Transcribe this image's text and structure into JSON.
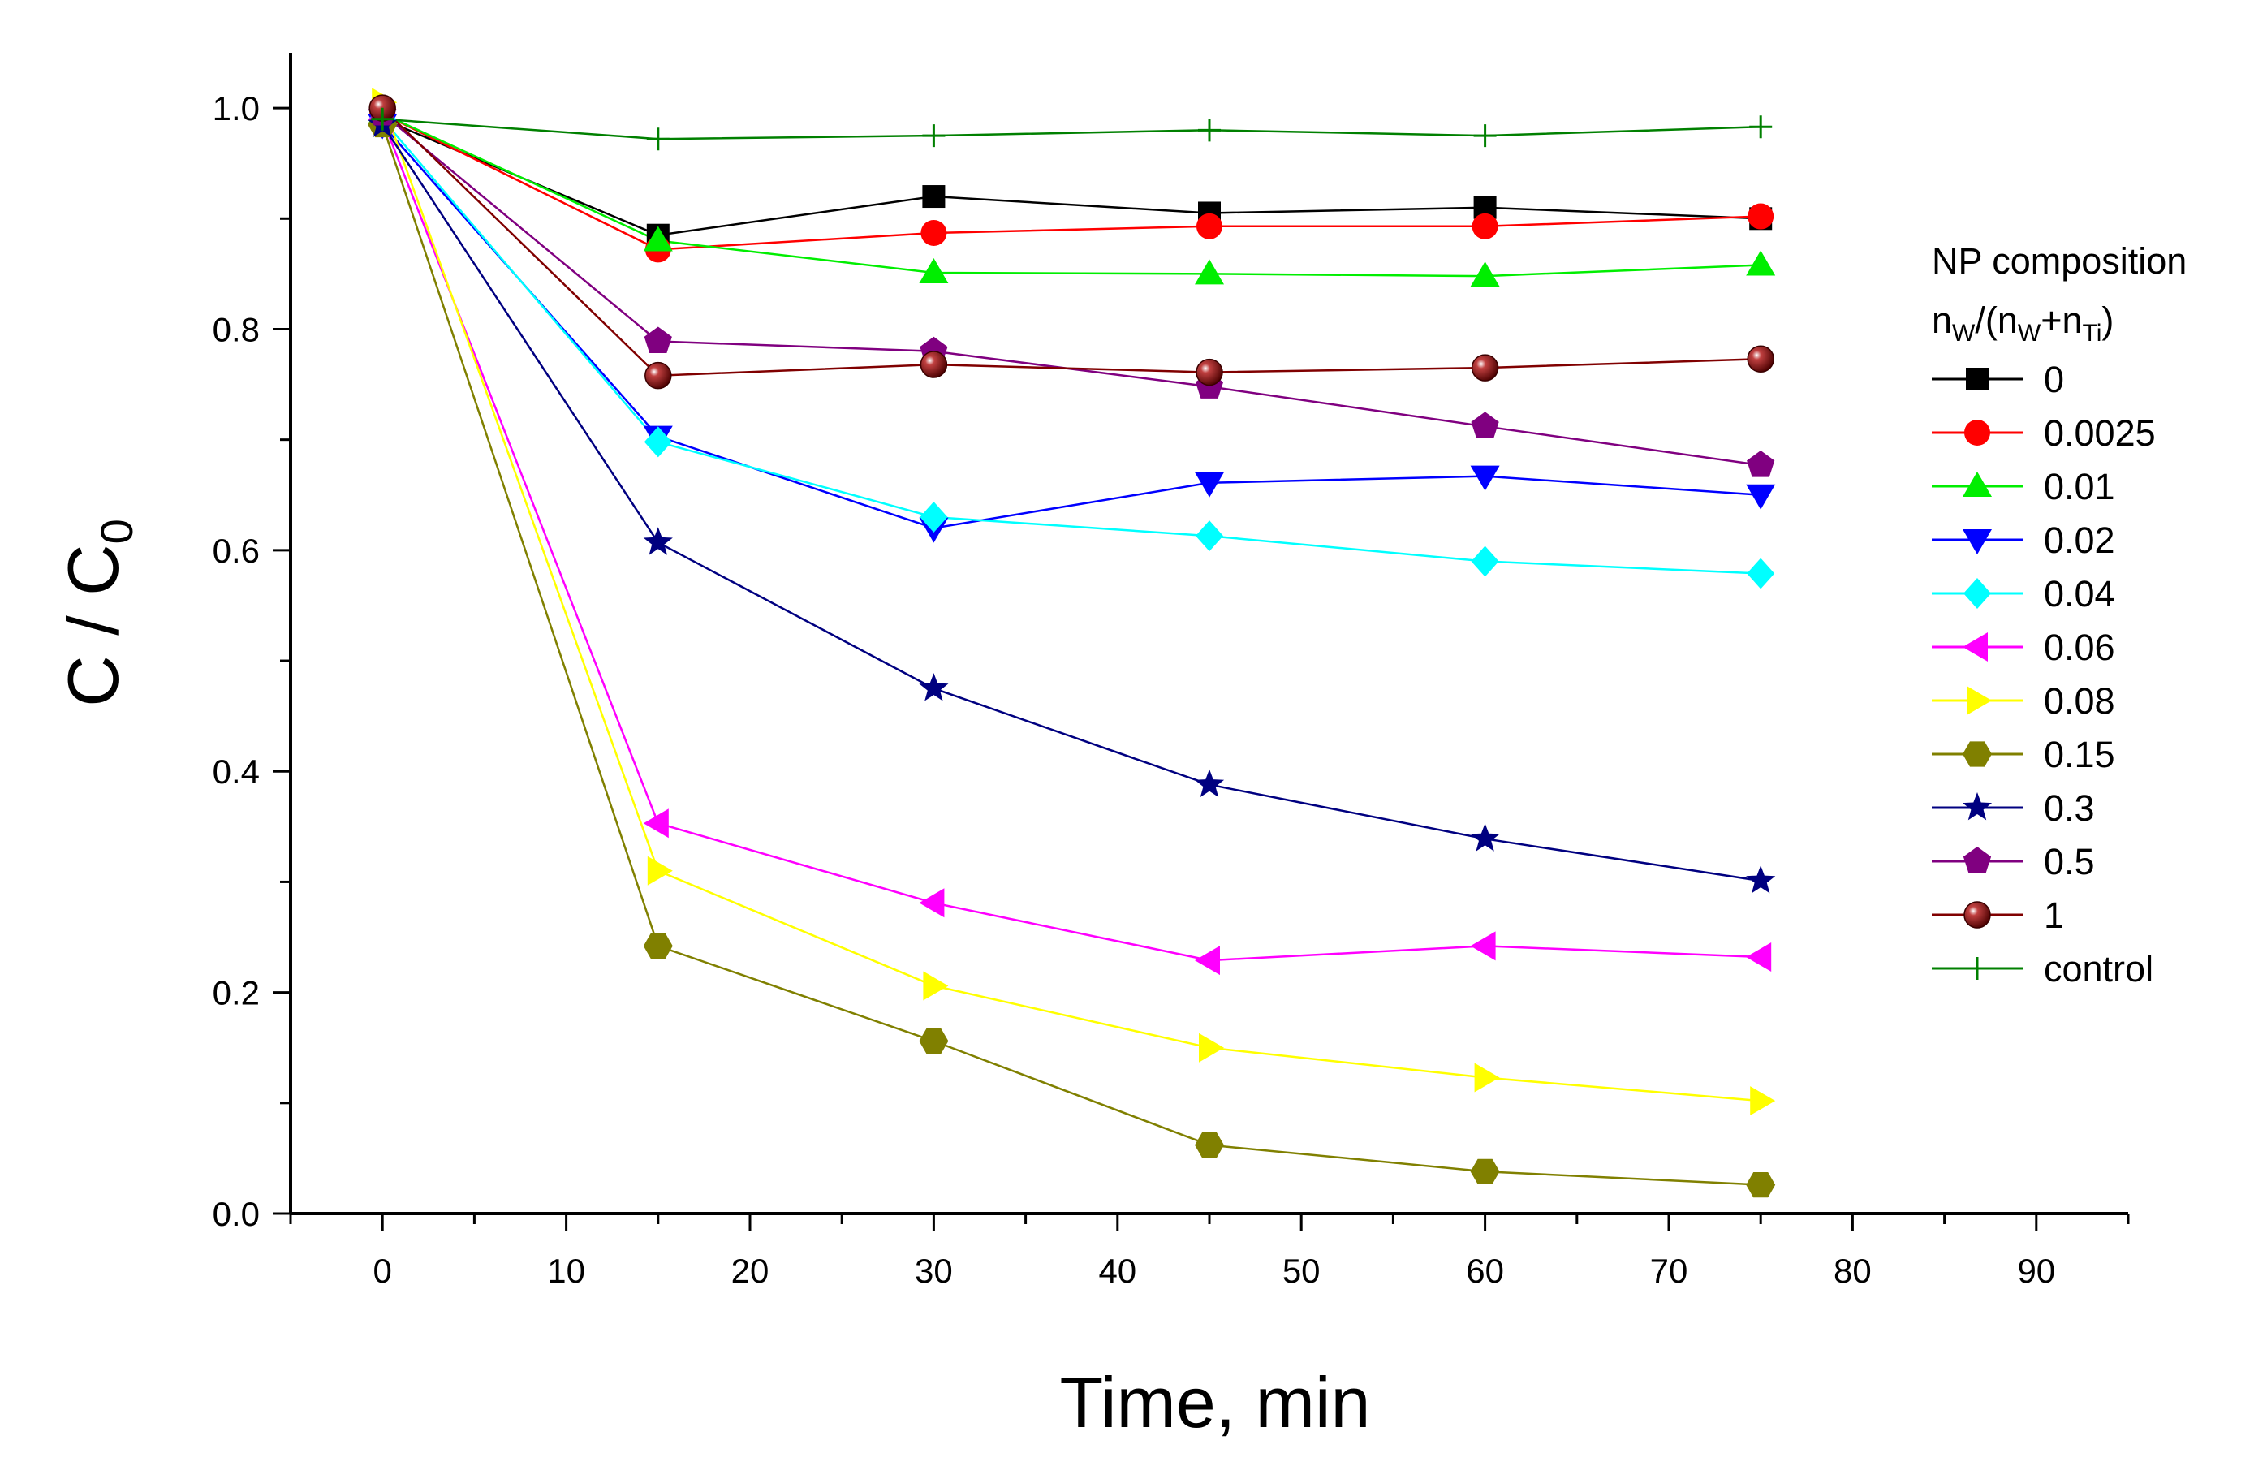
{
  "chart_data": {
    "type": "line",
    "title": "",
    "xlabel": "Time, min",
    "ylabel": {
      "main": "C / C",
      "sub": "0"
    },
    "xlim": [
      -5,
      95
    ],
    "ylim": [
      0.0,
      1.05
    ],
    "x_ticks": [
      0,
      10,
      20,
      30,
      40,
      50,
      60,
      70,
      80,
      90
    ],
    "x_tick_labels": [
      "0",
      "10",
      "20",
      "30",
      "40",
      "50",
      "60",
      "70",
      "80",
      "90"
    ],
    "y_ticks": [
      0.0,
      0.2,
      0.4,
      0.6,
      0.8,
      1.0
    ],
    "y_tick_labels": [
      "0.0",
      "0.2",
      "0.4",
      "0.6",
      "0.8",
      "1.0"
    ],
    "grid": false,
    "legend": {
      "position": "right",
      "title_line1": "NP composition",
      "title_line2": {
        "n1": "n",
        "s1": "W",
        "mid": "/(n",
        "s2": "W",
        "plus": "+n",
        "s3": "Ti",
        "end": ")"
      }
    },
    "x": [
      0,
      15,
      30,
      45,
      60,
      75
    ],
    "series": [
      {
        "name": "0",
        "color": "#000000",
        "marker": "square",
        "values": [
          0.99,
          0.885,
          0.92,
          0.905,
          0.91,
          0.9
        ]
      },
      {
        "name": "0.0025",
        "color": "#ff0000",
        "marker": "circle",
        "values": [
          0.995,
          0.872,
          0.887,
          0.893,
          0.893,
          0.902
        ]
      },
      {
        "name": "0.01",
        "color": "#00ee00",
        "marker": "triangle-up",
        "values": [
          0.995,
          0.88,
          0.851,
          0.85,
          0.848,
          0.858
        ]
      },
      {
        "name": "0.02",
        "color": "#0000ff",
        "marker": "triangle-down",
        "values": [
          0.985,
          0.703,
          0.62,
          0.661,
          0.667,
          0.65
        ]
      },
      {
        "name": "0.04",
        "color": "#00ffff",
        "marker": "diamond",
        "values": [
          0.99,
          0.698,
          0.63,
          0.613,
          0.59,
          0.579
        ]
      },
      {
        "name": "0.06",
        "color": "#ff00ff",
        "marker": "triangle-left",
        "values": [
          0.99,
          0.353,
          0.281,
          0.229,
          0.242,
          0.232
        ]
      },
      {
        "name": "0.08",
        "color": "#ffff00",
        "marker": "triangle-right",
        "values": [
          1.005,
          0.31,
          0.206,
          0.15,
          0.123,
          0.102
        ]
      },
      {
        "name": "0.15",
        "color": "#808000",
        "marker": "hexagon",
        "values": [
          0.985,
          0.242,
          0.156,
          0.062,
          0.038,
          0.026
        ]
      },
      {
        "name": "0.3",
        "color": "#000080",
        "marker": "star",
        "values": [
          0.985,
          0.607,
          0.475,
          0.388,
          0.339,
          0.301
        ]
      },
      {
        "name": "0.5",
        "color": "#800080",
        "marker": "pentagon",
        "values": [
          0.995,
          0.789,
          0.78,
          0.748,
          0.712,
          0.677
        ]
      },
      {
        "name": "1",
        "color": "#800000",
        "marker": "sphere",
        "values": [
          1.0,
          0.758,
          0.768,
          0.761,
          0.765,
          0.773
        ]
      },
      {
        "name": "control",
        "color": "#008000",
        "marker": "plus",
        "values": [
          0.99,
          0.972,
          0.975,
          0.98,
          0.975,
          0.983
        ]
      }
    ]
  }
}
